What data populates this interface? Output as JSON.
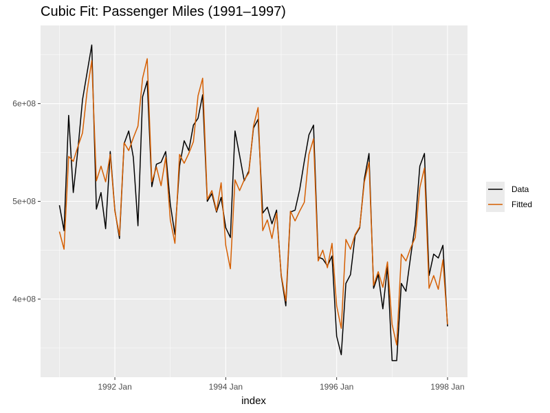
{
  "title": "Cubic Fit: Passenger Miles (1991–1997)",
  "chart_data": {
    "type": "line",
    "title": "Cubic Fit: Passenger Miles (1991–1997)",
    "xlabel": "index",
    "ylabel": "",
    "x_start": "1991 Jan",
    "x_step": "month",
    "xlim": [
      1990.66,
      1998.36
    ],
    "ylim": [
      320000000,
      680000000
    ],
    "x_ticks": [
      {
        "value": 1992,
        "label": "1992 Jan"
      },
      {
        "value": 1994,
        "label": "1994 Jan"
      },
      {
        "value": 1996,
        "label": "1996 Jan"
      },
      {
        "value": 1998,
        "label": "1998 Jan"
      }
    ],
    "y_ticks": [
      {
        "value": 400000000,
        "label": "4e+08"
      },
      {
        "value": 500000000,
        "label": "5e+08"
      },
      {
        "value": 600000000,
        "label": "6e+08"
      }
    ],
    "grid": true,
    "legend_position": "right",
    "series": [
      {
        "name": "Data",
        "color": "#000000",
        "values": [
          496,
          470,
          588,
          509,
          553,
          604,
          632,
          660,
          492,
          509,
          472,
          551,
          491,
          462,
          559,
          572,
          545,
          475,
          607,
          623,
          515,
          538,
          540,
          551,
          497,
          466,
          536,
          562,
          552,
          578,
          585,
          609,
          500,
          508,
          489,
          504,
          473,
          463,
          572,
          547,
          521,
          531,
          575,
          584,
          488,
          494,
          477,
          491,
          424,
          393,
          489,
          491,
          512,
          541,
          568,
          578,
          443,
          441,
          434,
          444,
          362,
          343,
          416,
          425,
          465,
          473,
          523,
          549,
          411,
          425,
          390,
          433,
          337,
          337,
          416,
          408,
          443,
          476,
          536,
          549,
          424,
          446,
          442,
          455,
          372
        ]
      },
      {
        "name": "Fitted",
        "color": "#d55e00",
        "values": [
          469,
          451,
          546,
          541,
          556,
          570,
          613,
          644,
          521,
          536,
          520,
          548,
          490,
          465,
          560,
          552,
          565,
          577,
          626,
          646,
          520,
          535,
          516,
          545,
          481,
          457,
          548,
          539,
          549,
          561,
          608,
          626,
          502,
          511,
          490,
          519,
          455,
          431,
          522,
          511,
          522,
          529,
          577,
          596,
          470,
          481,
          462,
          488,
          425,
          398,
          490,
          480,
          490,
          499,
          548,
          564,
          439,
          450,
          432,
          457,
          393,
          370,
          461,
          451,
          466,
          474,
          520,
          540,
          414,
          428,
          412,
          438,
          374,
          353,
          446,
          439,
          452,
          463,
          514,
          534,
          411,
          424,
          410,
          440,
          374
        ]
      }
    ]
  }
}
